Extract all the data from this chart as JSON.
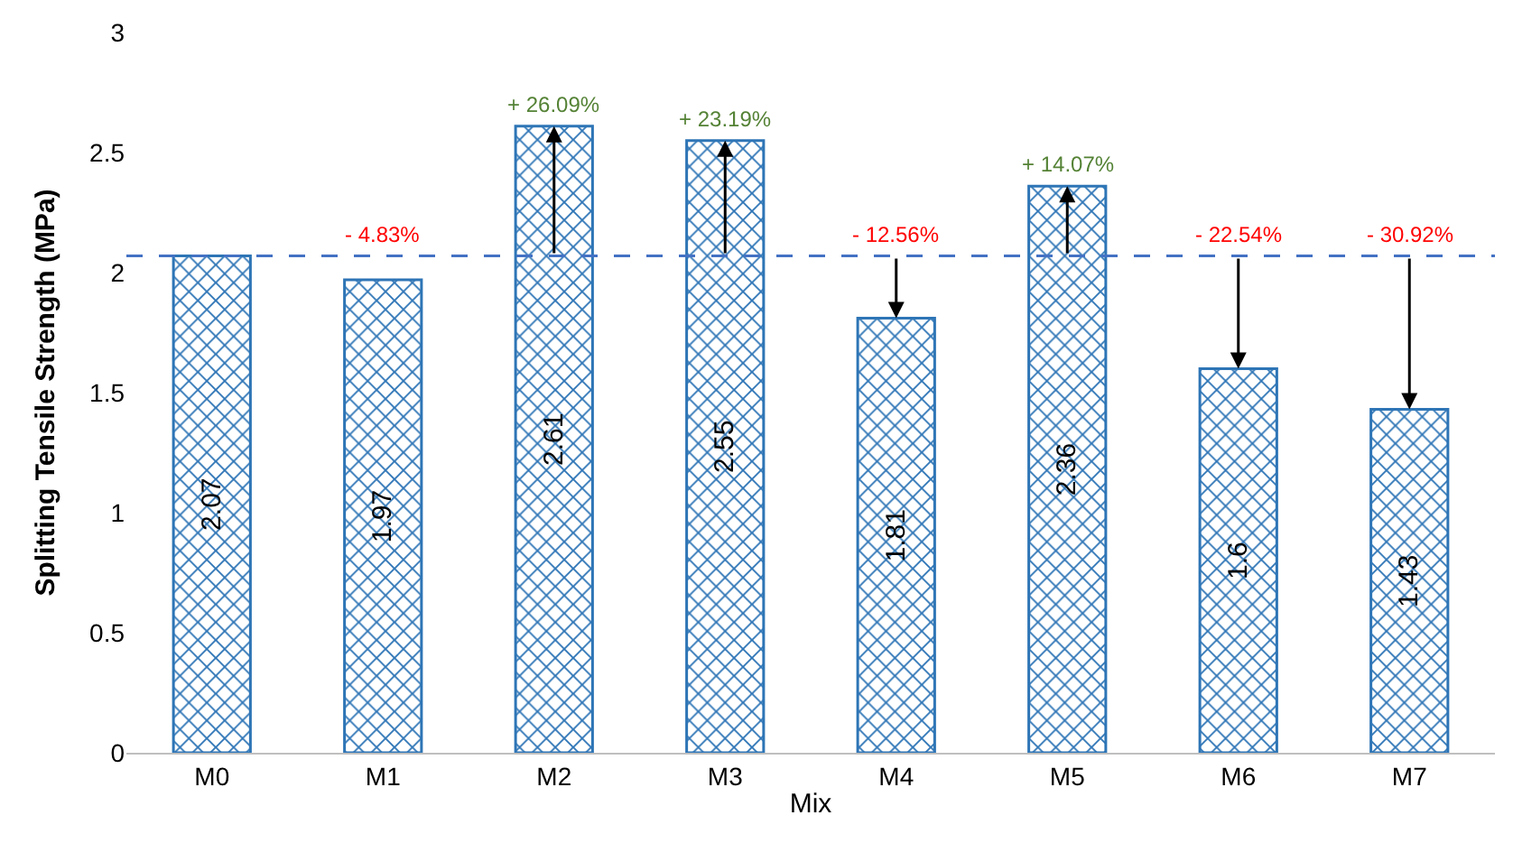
{
  "chart_data": {
    "type": "bar",
    "xlabel": "Mix",
    "ylabel": "Splitting Tensile Strength (MPa)",
    "categories": [
      "M0",
      "M1",
      "M2",
      "M3",
      "M4",
      "M5",
      "M6",
      "M7"
    ],
    "values": [
      2.07,
      1.97,
      2.61,
      2.55,
      1.81,
      2.36,
      1.6,
      1.43
    ],
    "color": "#2e75b6",
    "data_labels": true,
    "grid": false,
    "ylim": [
      0,
      3
    ],
    "yticks": [
      0,
      0.5,
      1,
      1.5,
      2,
      2.5,
      3
    ],
    "ref_lines": [
      {
        "axis": "y",
        "value": 2.07,
        "color": "#4472c4",
        "line_style": "dashed"
      }
    ],
    "annotations": [
      {
        "text": "- 4.83%",
        "x": "M1",
        "y": 2.07
      },
      {
        "text": "+ 26.09%",
        "x": "M2",
        "y": 2.61
      },
      {
        "text": "+ 23.19%",
        "x": "M3",
        "y": 2.55
      },
      {
        "text": "- 12.56%",
        "x": "M4",
        "y": 2.07
      },
      {
        "text": "+ 14.07%",
        "x": "M5",
        "y": 2.36
      },
      {
        "text": "- 22.54%",
        "x": "M6",
        "y": 2.07
      },
      {
        "text": "- 30.92%",
        "x": "M7",
        "y": 2.07
      }
    ]
  }
}
